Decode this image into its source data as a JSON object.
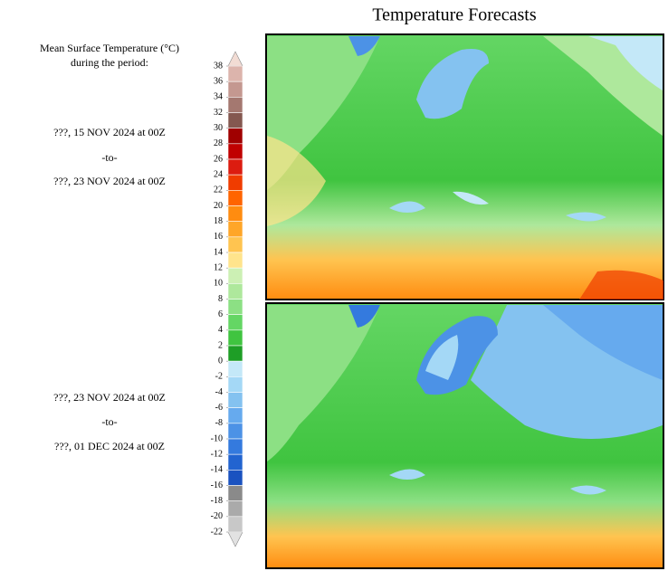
{
  "header": {
    "title": "Temperature Forecasts"
  },
  "legend": {
    "label_lines": [
      "Mean Surface Temperature (°C)",
      "during the period:"
    ]
  },
  "periods": [
    {
      "start": "???, 15 NOV 2024 at 00Z",
      "separator": "-to-",
      "end": "???, 23 NOV 2024 at 00Z"
    },
    {
      "start": "???, 23 NOV 2024 at 00Z",
      "separator": "-to-",
      "end": "???, 01 DEC 2024 at 00Z"
    }
  ],
  "colorbar": {
    "ticks": [
      38,
      36,
      34,
      32,
      30,
      28,
      26,
      24,
      22,
      20,
      18,
      16,
      14,
      12,
      10,
      8,
      6,
      4,
      2,
      0,
      -2,
      -4,
      -6,
      -8,
      -10,
      -12,
      -14,
      -16,
      -18,
      -20,
      -22
    ],
    "colors": [
      "#dcb4ac",
      "#c49890",
      "#a47870",
      "#845850",
      "#a00000",
      "#c00000",
      "#dc1c10",
      "#f03c00",
      "#ff6400",
      "#ff8c10",
      "#ffa628",
      "#ffc450",
      "#ffe48c",
      "#ccf0b4",
      "#aee89c",
      "#8ce084",
      "#64d664",
      "#40c440",
      "#1e9e26",
      "#c4e8f8",
      "#a4d8f6",
      "#84c2f0",
      "#66aaee",
      "#4c92e6",
      "#347ade",
      "#2264d0",
      "#1a52c0",
      "#8a8a8a",
      "#aaaaaa",
      "#c8c8c8"
    ],
    "over_color": "#f2dcd4",
    "under_color": "#e2e2e2"
  }
}
